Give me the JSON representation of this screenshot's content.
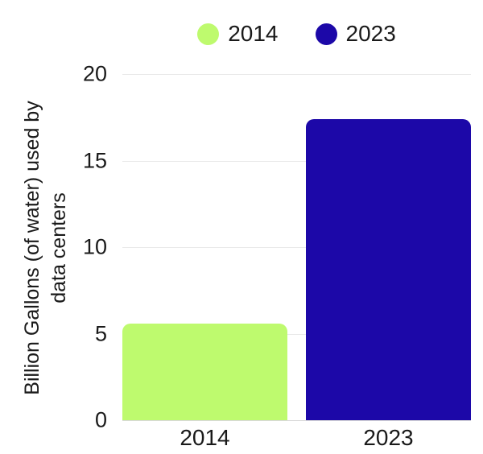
{
  "chart_data": {
    "type": "bar",
    "title": "",
    "categories": [
      "2014",
      "2023"
    ],
    "values": [
      5.6,
      17.4
    ],
    "colors": [
      "#befa6e",
      "#1c08a8"
    ],
    "legend": [
      "2014",
      "2023"
    ],
    "legend_position": "top",
    "legend_marker": "circle",
    "xlabel": "",
    "ylabel": "Billion Gallons (of water) used by data centers",
    "ylabel_lines": [
      "Billion Gallons (of water) used by",
      "data centers"
    ],
    "ylim": [
      0,
      20
    ],
    "yticks": [
      0,
      5,
      10,
      15,
      20
    ],
    "grid": true,
    "gridline_color": "#e9e9e9",
    "baseline_color": "#d9d9d9",
    "text_color": "#1a1a1a",
    "background_color": "#ffffff"
  }
}
